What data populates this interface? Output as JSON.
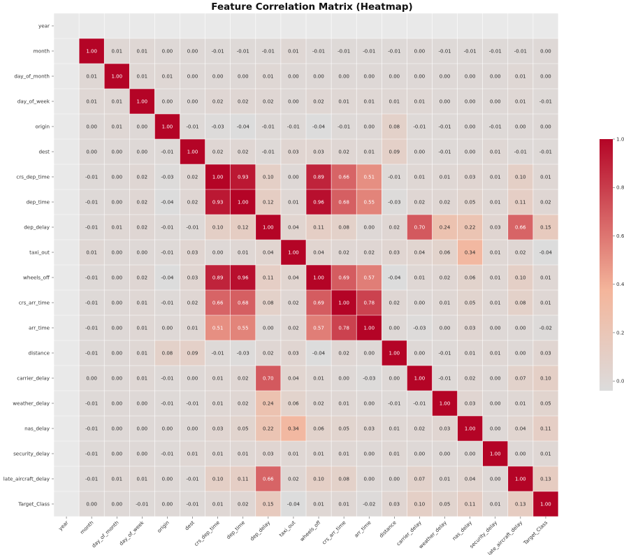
{
  "chart_data": {
    "type": "heatmap",
    "title": "Feature Correlation Matrix (Heatmap)",
    "labels": [
      "year",
      "month",
      "day_of_month",
      "day_of_week",
      "origin",
      "dest",
      "crs_dep_time",
      "dep_time",
      "dep_delay",
      "taxi_out",
      "wheels_off",
      "crs_arr_time",
      "arr_time",
      "distance",
      "carrier_delay",
      "weather_delay",
      "nas_delay",
      "security_delay",
      "late_aircraft_delay",
      "Target_Class"
    ],
    "values": [
      [
        null,
        null,
        null,
        null,
        null,
        null,
        null,
        null,
        null,
        null,
        null,
        null,
        null,
        null,
        null,
        null,
        null,
        null,
        null,
        null
      ],
      [
        null,
        1.0,
        0.01,
        0.01,
        -0.0,
        -0.0,
        -0.01,
        -0.01,
        -0.01,
        0.01,
        -0.01,
        -0.01,
        -0.01,
        -0.01,
        0.0,
        -0.01,
        -0.01,
        -0.01,
        -0.01,
        0.0
      ],
      [
        null,
        0.01,
        1.0,
        0.01,
        0.01,
        0.0,
        0.0,
        -0.0,
        0.01,
        -0.0,
        -0.0,
        -0.0,
        0.0,
        0.0,
        -0.0,
        0.0,
        -0.0,
        0.0,
        0.01,
        0.0
      ],
      [
        null,
        0.01,
        0.01,
        1.0,
        -0.0,
        0.0,
        0.02,
        0.02,
        0.02,
        -0.0,
        0.02,
        0.01,
        0.01,
        0.01,
        0.01,
        0.0,
        0.0,
        0.0,
        0.01,
        -0.01
      ],
      [
        null,
        -0.0,
        0.01,
        -0.0,
        1.0,
        -0.01,
        -0.03,
        -0.04,
        -0.01,
        -0.01,
        -0.04,
        -0.01,
        -0.0,
        0.08,
        -0.01,
        -0.01,
        0.0,
        -0.01,
        -0.0,
        0.0
      ],
      [
        null,
        -0.0,
        0.0,
        0.0,
        -0.01,
        1.0,
        0.02,
        0.02,
        -0.01,
        0.03,
        0.03,
        0.02,
        0.01,
        0.09,
        -0.0,
        -0.01,
        0.0,
        0.01,
        -0.01,
        -0.01
      ],
      [
        null,
        -0.01,
        0.0,
        0.02,
        -0.03,
        0.02,
        1.0,
        0.93,
        0.1,
        0.0,
        0.89,
        0.66,
        0.51,
        -0.01,
        0.01,
        0.01,
        0.03,
        0.01,
        0.1,
        0.01
      ],
      [
        null,
        -0.01,
        -0.0,
        0.02,
        -0.04,
        0.02,
        0.93,
        1.0,
        0.12,
        0.01,
        0.96,
        0.68,
        0.55,
        -0.03,
        0.02,
        0.02,
        0.05,
        0.01,
        0.11,
        0.02
      ],
      [
        null,
        -0.01,
        0.01,
        0.02,
        -0.01,
        -0.01,
        0.1,
        0.12,
        1.0,
        0.04,
        0.11,
        0.08,
        -0.0,
        0.02,
        0.7,
        0.24,
        0.22,
        0.03,
        0.66,
        0.15
      ],
      [
        null,
        0.01,
        -0.0,
        -0.0,
        -0.01,
        0.03,
        0.0,
        0.01,
        0.04,
        1.0,
        0.04,
        0.02,
        0.02,
        0.03,
        0.04,
        0.06,
        0.34,
        0.01,
        0.02,
        -0.04
      ],
      [
        null,
        -0.01,
        -0.0,
        0.02,
        -0.04,
        0.03,
        0.89,
        0.96,
        0.11,
        0.04,
        1.0,
        0.69,
        0.57,
        -0.04,
        0.01,
        0.02,
        0.06,
        0.01,
        0.1,
        0.01
      ],
      [
        null,
        -0.01,
        -0.0,
        0.01,
        -0.01,
        0.02,
        0.66,
        0.68,
        0.08,
        0.02,
        0.69,
        1.0,
        0.78,
        0.02,
        0.0,
        0.01,
        0.05,
        0.01,
        0.08,
        0.01
      ],
      [
        null,
        -0.01,
        0.0,
        0.01,
        -0.0,
        0.01,
        0.51,
        0.55,
        -0.0,
        0.02,
        0.57,
        0.78,
        1.0,
        -0.0,
        -0.03,
        -0.0,
        0.03,
        0.0,
        -0.0,
        -0.02
      ],
      [
        null,
        -0.01,
        0.0,
        0.01,
        0.08,
        0.09,
        -0.01,
        -0.03,
        0.02,
        0.03,
        -0.04,
        0.02,
        -0.0,
        1.0,
        0.0,
        -0.01,
        0.01,
        0.01,
        -0.0,
        0.03
      ],
      [
        null,
        0.0,
        -0.0,
        0.01,
        -0.01,
        -0.0,
        0.01,
        0.02,
        0.7,
        0.04,
        0.01,
        0.0,
        -0.03,
        0.0,
        1.0,
        -0.01,
        0.02,
        -0.0,
        0.07,
        0.1
      ],
      [
        null,
        -0.01,
        0.0,
        0.0,
        -0.01,
        -0.01,
        0.01,
        0.02,
        0.24,
        0.06,
        0.02,
        0.01,
        -0.0,
        -0.01,
        -0.01,
        1.0,
        0.03,
        -0.0,
        0.01,
        0.05
      ],
      [
        null,
        -0.01,
        -0.0,
        0.0,
        0.0,
        0.0,
        0.03,
        0.05,
        0.22,
        0.34,
        0.06,
        0.05,
        0.03,
        0.01,
        0.02,
        0.03,
        1.0,
        0.0,
        0.04,
        0.11
      ],
      [
        null,
        -0.01,
        0.0,
        0.0,
        -0.01,
        0.01,
        0.01,
        0.01,
        0.03,
        0.01,
        0.01,
        0.01,
        0.0,
        0.01,
        -0.0,
        -0.0,
        0.0,
        1.0,
        0.0,
        0.01
      ],
      [
        null,
        -0.01,
        0.01,
        0.01,
        -0.0,
        -0.01,
        0.1,
        0.11,
        0.66,
        0.02,
        0.1,
        0.08,
        -0.0,
        -0.0,
        0.07,
        0.01,
        0.04,
        0.0,
        1.0,
        0.13
      ],
      [
        null,
        0.0,
        0.0,
        -0.01,
        0.0,
        -0.01,
        0.01,
        0.02,
        0.15,
        -0.04,
        0.01,
        0.01,
        -0.02,
        0.03,
        0.1,
        0.05,
        0.11,
        0.01,
        0.13,
        1.0
      ]
    ],
    "colorbar": {
      "ticks": [
        "1.0",
        "0.8",
        "0.6",
        "0.4",
        "0.2",
        "0.0"
      ],
      "tick_values": [
        1.0,
        0.8,
        0.6,
        0.4,
        0.2,
        0.0
      ],
      "range": [
        -0.04,
        1.0
      ]
    },
    "colormap": {
      "low": "#dcdcdc",
      "mid": "#f4b59b",
      "high": "#b40426"
    },
    "grid": true,
    "legend": "right"
  }
}
